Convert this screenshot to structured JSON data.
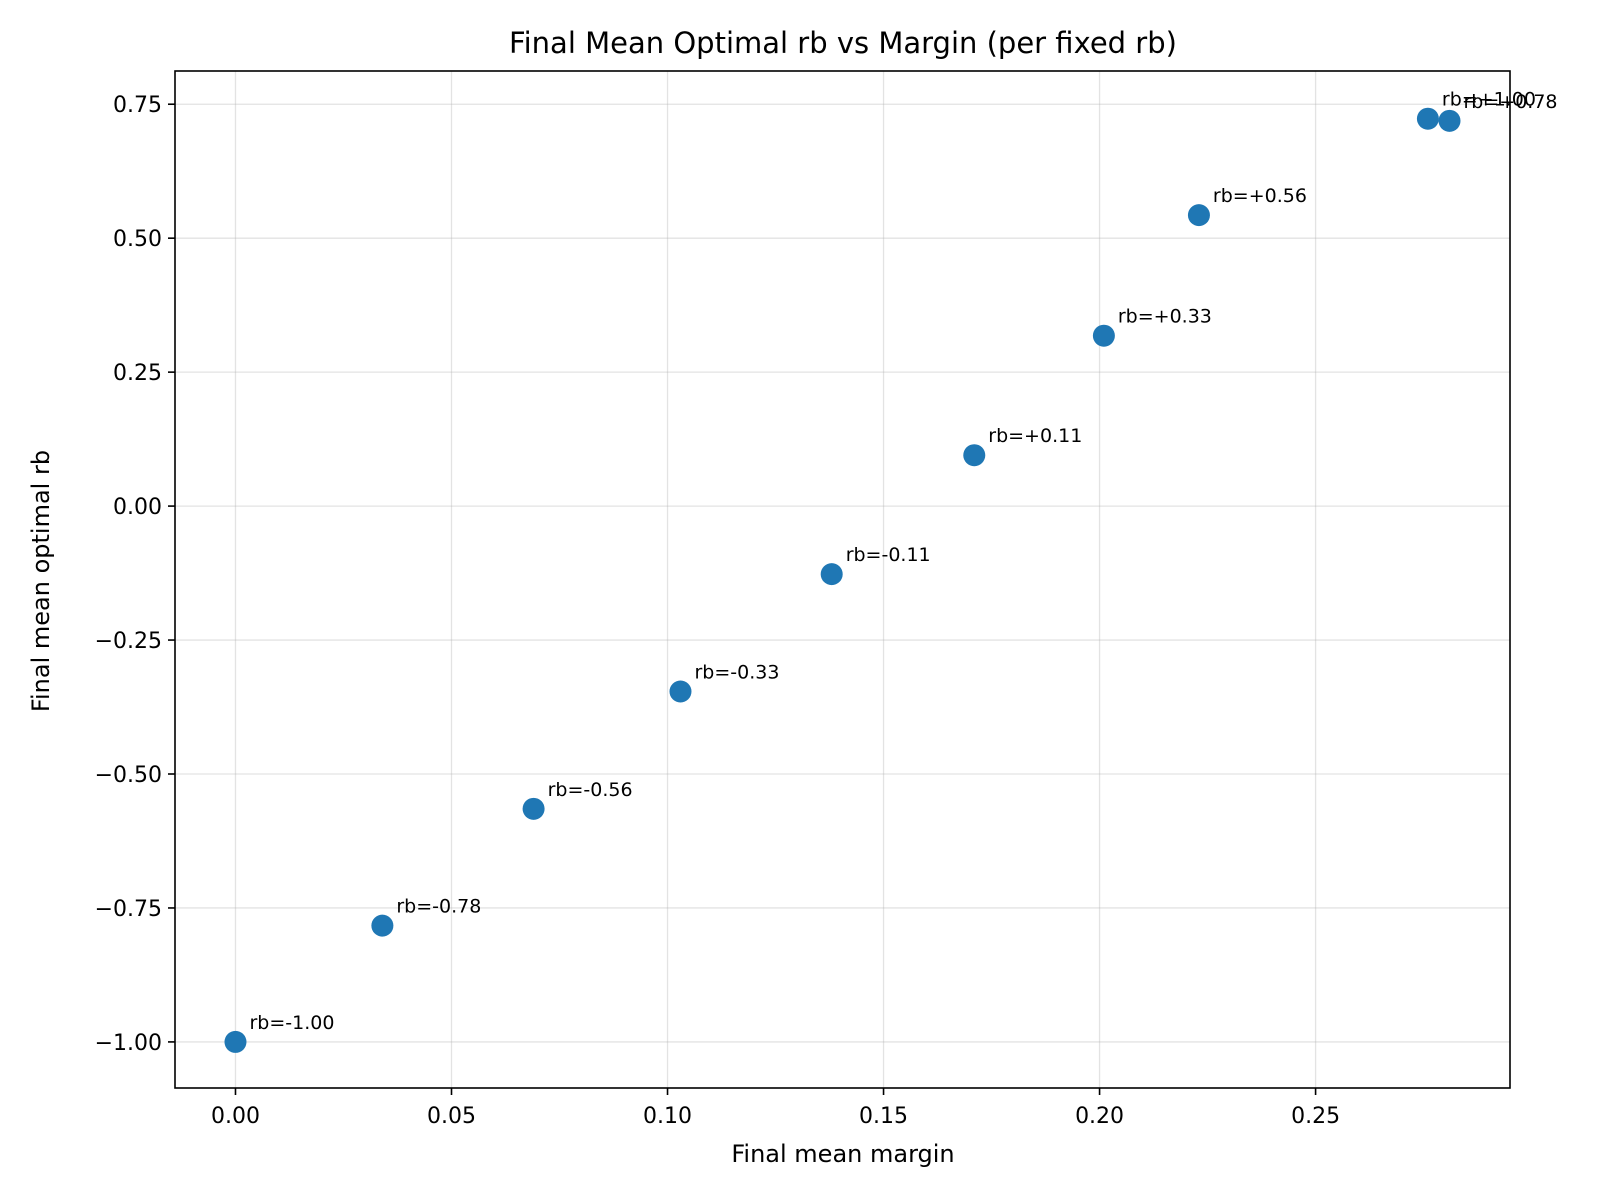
{
  "chart_data": {
    "type": "scatter",
    "title": "Final Mean Optimal rb vs Margin (per fixed rb)",
    "xlabel": "Final mean margin",
    "ylabel": "Final mean optimal rb",
    "xlim": [
      -0.014,
      0.295
    ],
    "ylim": [
      -1.086,
      0.812
    ],
    "xticks": [
      0.0,
      0.05,
      0.1,
      0.15,
      0.2,
      0.25
    ],
    "xtick_labels": [
      "0.00",
      "0.05",
      "0.10",
      "0.15",
      "0.20",
      "0.25"
    ],
    "yticks": [
      -1.0,
      -0.75,
      -0.5,
      -0.25,
      0.0,
      0.25,
      0.5,
      0.75
    ],
    "ytick_labels": [
      "−1.00",
      "−0.75",
      "−0.50",
      "−0.25",
      "0.00",
      "0.25",
      "0.50",
      "0.75"
    ],
    "grid": true,
    "marker_color": "#1f77b4",
    "points": [
      {
        "x": 0.0,
        "y": -1.0,
        "label": "rb=-1.00"
      },
      {
        "x": 0.034,
        "y": -0.783,
        "label": "rb=-0.78"
      },
      {
        "x": 0.069,
        "y": -0.565,
        "label": "rb=-0.56"
      },
      {
        "x": 0.103,
        "y": -0.346,
        "label": "rb=-0.33"
      },
      {
        "x": 0.138,
        "y": -0.127,
        "label": "rb=-0.11"
      },
      {
        "x": 0.171,
        "y": 0.095,
        "label": "rb=+0.11"
      },
      {
        "x": 0.201,
        "y": 0.318,
        "label": "rb=+0.33"
      },
      {
        "x": 0.223,
        "y": 0.543,
        "label": "rb=+0.56"
      },
      {
        "x": 0.276,
        "y": 0.723,
        "label": "rb=+1.00"
      },
      {
        "x": 0.281,
        "y": 0.719,
        "label": "rb=+0.78"
      }
    ]
  }
}
